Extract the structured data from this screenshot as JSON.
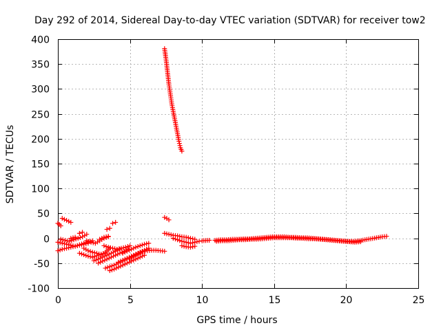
{
  "chart_data": {
    "type": "scatter",
    "title": "Day 292 of 2014, Sidereal Day-to-day VTEC variation (SDTVAR) for receiver tow2",
    "xlabel": "GPS time / hours",
    "ylabel": "SDTVAR / TECUs",
    "xlim": [
      0,
      25
    ],
    "ylim": [
      -100,
      400
    ],
    "xticks": [
      0,
      5,
      10,
      15,
      20,
      25
    ],
    "yticks": [
      -100,
      -50,
      0,
      50,
      100,
      150,
      200,
      250,
      300,
      350,
      400
    ],
    "grid": true,
    "marker": "plus",
    "color": "#ff0000",
    "segments": [
      {
        "x": [
          0.0,
          0.1,
          0.2
        ],
        "y": [
          30,
          28,
          25
        ]
      },
      {
        "x": [
          0.3,
          0.45,
          0.6,
          0.75,
          0.9
        ],
        "y": [
          40,
          38,
          36,
          34,
          32
        ]
      },
      {
        "x": [
          7.4,
          7.5,
          7.6,
          7.7,
          7.8,
          7.9,
          8.0,
          8.1,
          8.2,
          8.3,
          8.4,
          8.5,
          8.6
        ],
        "y": [
          381,
          360,
          335,
          310,
          290,
          270,
          255,
          240,
          225,
          210,
          195,
          182,
          175
        ]
      },
      {
        "x": [
          7.4,
          7.55,
          7.7
        ],
        "y": [
          42,
          40,
          37
        ]
      },
      {
        "x": [
          0.0,
          0.3,
          0.6,
          0.9,
          1.2,
          1.5,
          1.8,
          2.1
        ],
        "y": [
          -25,
          -22,
          -20,
          -18,
          -16,
          -14,
          -12,
          -10
        ]
      },
      {
        "x": [
          0.0,
          0.3,
          0.6,
          0.9,
          1.2,
          1.5,
          1.8,
          2.1,
          2.4
        ],
        "y": [
          -8,
          -10,
          -12,
          -14,
          -16,
          -13,
          -10,
          -7,
          -5
        ]
      },
      {
        "x": [
          0.2,
          0.5,
          0.8,
          1.1,
          1.4,
          1.7,
          2.0
        ],
        "y": [
          -2,
          -4,
          -6,
          -3,
          0,
          3,
          8
        ]
      },
      {
        "x": [
          1.5,
          1.8,
          2.1,
          2.4,
          2.7,
          3.0,
          3.3
        ],
        "y": [
          -30,
          -33,
          -36,
          -38,
          -35,
          -32,
          -30
        ]
      },
      {
        "x": [
          1.8,
          2.1,
          2.4,
          2.7,
          3.0,
          3.3,
          3.6
        ],
        "y": [
          -20,
          -25,
          -28,
          -30,
          -33,
          -28,
          -20
        ]
      },
      {
        "x": [
          2.0,
          2.3,
          2.6,
          2.9,
          3.2,
          3.5
        ],
        "y": [
          -5,
          -8,
          -10,
          -5,
          0,
          3
        ]
      },
      {
        "x": [
          2.5,
          2.8,
          3.1,
          3.4,
          3.7,
          4.0,
          4.3
        ],
        "y": [
          -45,
          -42,
          -38,
          -34,
          -30,
          -26,
          -22
        ]
      },
      {
        "x": [
          2.8,
          3.1,
          3.4,
          3.7,
          4.0,
          4.3,
          4.6,
          4.9
        ],
        "y": [
          -50,
          -46,
          -42,
          -38,
          -34,
          -30,
          -26,
          -22
        ]
      },
      {
        "x": [
          3.3,
          3.6,
          3.9,
          4.2,
          4.5,
          4.8,
          5.1,
          5.4,
          5.7
        ],
        "y": [
          -60,
          -57,
          -54,
          -50,
          -46,
          -42,
          -38,
          -34,
          -30
        ]
      },
      {
        "x": [
          3.6,
          3.9,
          4.2,
          4.5,
          4.8,
          5.1,
          5.4,
          5.7,
          6.0
        ],
        "y": [
          -65,
          -62,
          -58,
          -54,
          -50,
          -46,
          -42,
          -38,
          -34
        ]
      },
      {
        "x": [
          4.2,
          4.5,
          4.8,
          5.1,
          5.4,
          5.7,
          6.0,
          6.3
        ],
        "y": [
          -48,
          -44,
          -40,
          -36,
          -32,
          -28,
          -24,
          -20
        ]
      },
      {
        "x": [
          4.5,
          4.8,
          5.1,
          5.4,
          5.7,
          6.0,
          6.3
        ],
        "y": [
          -30,
          -26,
          -22,
          -18,
          -15,
          -12,
          -10
        ]
      },
      {
        "x": [
          5.0,
          5.3,
          5.6,
          5.9,
          6.2,
          6.5,
          6.8,
          7.1,
          7.4
        ],
        "y": [
          -40,
          -35,
          -30,
          -27,
          -25,
          -24,
          -24,
          -25,
          -26
        ]
      },
      {
        "x": [
          3.2,
          3.5,
          3.8,
          4.1,
          4.4,
          4.7,
          5.0
        ],
        "y": [
          -15,
          -18,
          -20,
          -22,
          -20,
          -18,
          -15
        ]
      },
      {
        "x": [
          3.4,
          3.6
        ],
        "y": [
          18,
          20
        ]
      },
      {
        "x": [
          3.8,
          4.0
        ],
        "y": [
          30,
          32
        ]
      },
      {
        "x": [
          2.9,
          3.2,
          3.5
        ],
        "y": [
          -2,
          2,
          4
        ]
      },
      {
        "x": [
          0.9,
          1.2
        ],
        "y": [
          0,
          2
        ]
      },
      {
        "x": [
          1.5,
          1.7
        ],
        "y": [
          10,
          12
        ]
      },
      {
        "x": [
          7.4,
          7.7,
          8.0,
          8.3,
          8.6,
          8.9,
          9.2,
          9.5
        ],
        "y": [
          10,
          8,
          6,
          5,
          3,
          2,
          0,
          -2
        ]
      },
      {
        "x": [
          8.0,
          8.3,
          8.6,
          8.9,
          9.2,
          9.5,
          9.8
        ],
        "y": [
          0,
          -3,
          -6,
          -8,
          -10,
          -8,
          -6
        ]
      },
      {
        "x": [
          8.6,
          8.9,
          9.2,
          9.5
        ],
        "y": [
          -15,
          -17,
          -18,
          -16
        ]
      },
      {
        "x": [
          10.0,
          10.5
        ],
        "y": [
          -5,
          -4
        ]
      },
      {
        "x": [
          10.9,
          11.3,
          11.7,
          12.1,
          12.5,
          12.9,
          13.3,
          13.7,
          14.1,
          14.5,
          14.9,
          15.3,
          15.7,
          16.1,
          16.5,
          16.9,
          17.3,
          17.7,
          18.1,
          18.5,
          18.9,
          19.3,
          19.7,
          20.1,
          20.5,
          20.9,
          21.3,
          21.7,
          22.1,
          22.5,
          22.8
        ],
        "y": [
          -4,
          -3,
          -3,
          -2,
          -2,
          -1,
          -1,
          0,
          1,
          2,
          3,
          3,
          3,
          2,
          2,
          1,
          1,
          0,
          -1,
          -2,
          -3,
          -4,
          -5,
          -6,
          -6,
          -5,
          -3,
          -1,
          1,
          3,
          4
        ]
      },
      {
        "x": [
          11.0,
          11.4,
          11.8,
          12.2,
          12.6,
          13.0,
          13.4,
          13.8,
          14.2,
          14.6,
          15.0,
          15.4,
          15.8,
          16.2,
          16.6,
          17.0,
          17.4,
          17.8,
          18.2,
          18.6,
          19.0,
          19.4,
          19.8,
          20.2,
          20.6,
          21.0
        ],
        "y": [
          -6,
          -5,
          -5,
          -4,
          -3,
          -3,
          -2,
          -2,
          -1,
          0,
          1,
          1,
          1,
          1,
          0,
          0,
          -1,
          -1,
          -2,
          -3,
          -4,
          -5,
          -6,
          -7,
          -8,
          -7
        ]
      }
    ]
  }
}
